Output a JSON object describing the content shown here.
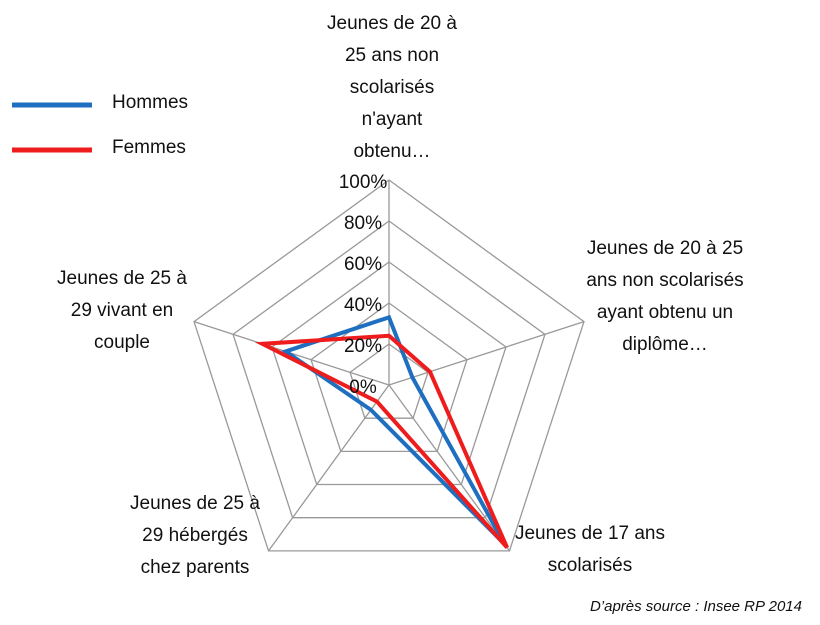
{
  "chart_data": {
    "type": "radar",
    "categories": [
      "Jeunes de 20 à 25 ans non scolarisés n'ayant obtenu…",
      "Jeunes de 20 à 25 ans non scolarisés ayant obtenu un diplôme…",
      "Jeunes de 17 ans scolarisés",
      "Jeunes de 25 à 29 hébergés chez parents",
      "Jeunes de 25 à 29 vivant en couple"
    ],
    "series": [
      {
        "name": "Hommes",
        "color": "#1f6fc0",
        "values": [
          33,
          12,
          96,
          15,
          53
        ]
      },
      {
        "name": "Femmes",
        "color": "#ee1c1c",
        "values": [
          24,
          21,
          98,
          10,
          65
        ]
      }
    ],
    "ylim": [
      0,
      100
    ],
    "yticks": [
      {
        "value": 0,
        "label": "0%"
      },
      {
        "value": 20,
        "label": "20%"
      },
      {
        "value": 40,
        "label": "40%"
      },
      {
        "value": 60,
        "label": "60%"
      },
      {
        "value": 80,
        "label": "80%"
      },
      {
        "value": 100,
        "label": "100%"
      }
    ],
    "grid": true,
    "legend": "top-left",
    "source": "D’après source : Insee RP 2014"
  }
}
